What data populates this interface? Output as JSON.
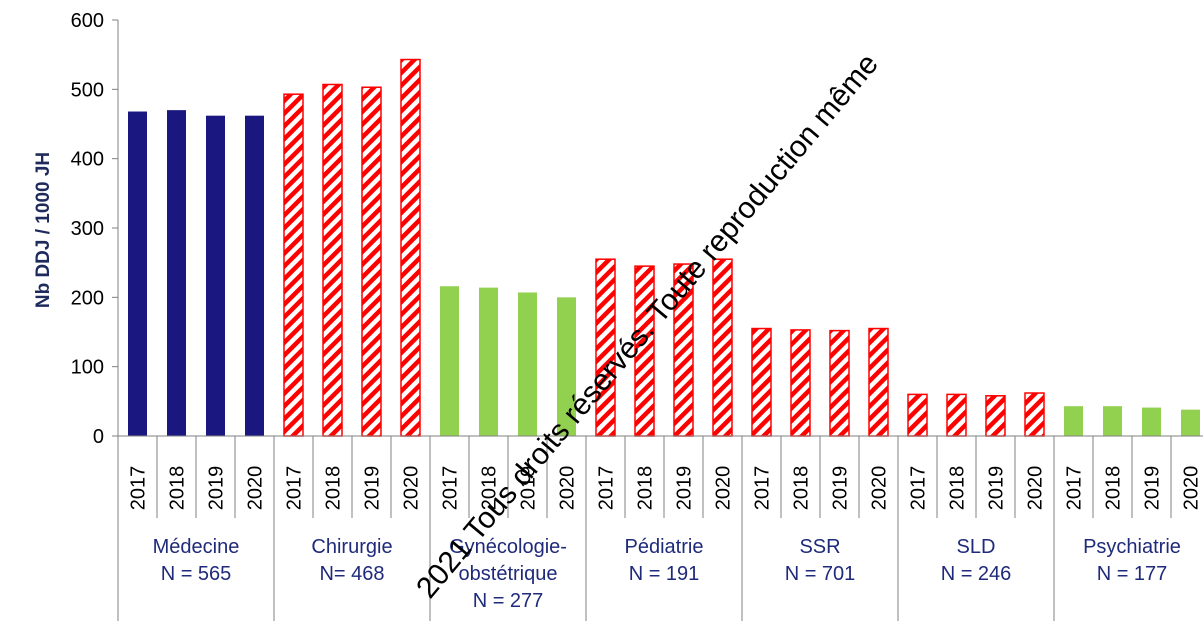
{
  "chart_data": {
    "type": "bar",
    "title": "",
    "ylabel": "Nb DDJ / 1000 JH",
    "ylim": [
      0,
      600
    ],
    "yticks": [
      0,
      100,
      200,
      300,
      400,
      500,
      600
    ],
    "years": [
      "2017",
      "2018",
      "2019",
      "2020"
    ],
    "groups": [
      {
        "name": "Médecine",
        "n_label": "N = 565",
        "style": "solid-navy",
        "values": [
          468,
          470,
          462,
          462
        ]
      },
      {
        "name": "Chirurgie",
        "n_label": "N= 468",
        "style": "hatched-red",
        "values": [
          493,
          507,
          503,
          543
        ]
      },
      {
        "name": "Gynécologie-obstétrique",
        "name_lines": [
          "Gynécologie-",
          "obstétrique"
        ],
        "n_label": "N = 277",
        "style": "solid-green",
        "values": [
          216,
          214,
          207,
          200
        ]
      },
      {
        "name": "Pédiatrie",
        "n_label": "N = 191",
        "style": "hatched-red",
        "values": [
          255,
          245,
          248,
          255
        ]
      },
      {
        "name": "SSR",
        "n_label": "N = 701",
        "style": "hatched-red",
        "values": [
          155,
          153,
          152,
          155
        ]
      },
      {
        "name": "SLD",
        "n_label": "N = 246",
        "style": "hatched-red",
        "values": [
          60,
          60,
          58,
          62
        ]
      },
      {
        "name": "Psychiatrie",
        "n_label": "N = 177",
        "style": "solid-green",
        "values": [
          43,
          43,
          41,
          38
        ]
      }
    ],
    "colors": {
      "navy": "#1b1780",
      "red": "#ff0000",
      "green": "#92d050"
    }
  },
  "watermark": "2021 Tous droits réservés. Toute reproduction même"
}
